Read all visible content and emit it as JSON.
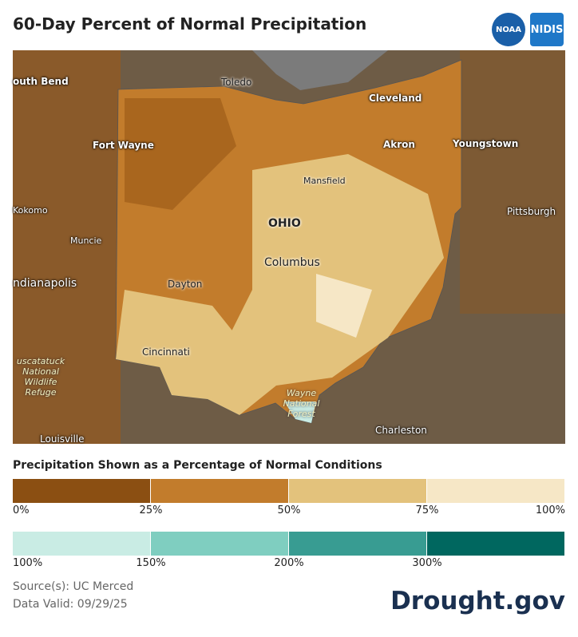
{
  "header": {
    "title": "60-Day Percent of Normal Precipitation",
    "logos": [
      "NOAA",
      "NIDIS"
    ]
  },
  "map": {
    "labels": [
      "outh Bend",
      "Toledo",
      "Cleveland",
      "Fort Wayne",
      "Akron",
      "Youngstown",
      "Mansfield",
      "Kokomo",
      "OHIO",
      "Pittsburgh",
      "Muncie",
      "Columbus",
      "ndianapolis",
      "Dayton",
      "Cincinnati",
      "uscatatuck National Wildlife Refuge",
      "Wayne National Forest",
      "Charleston",
      "Louisville"
    ]
  },
  "legend": {
    "title": "Precipitation Shown as a Percentage of Normal Conditions",
    "rows": [
      {
        "colors": [
          "#8b4f12",
          "#c27c2c",
          "#e3c27c",
          "#f6e7c6"
        ],
        "labels": [
          "0%",
          "25%",
          "50%",
          "75%",
          "100%"
        ]
      },
      {
        "colors": [
          "#c9ece4",
          "#7fcec0",
          "#389c92",
          "#00675f"
        ],
        "labels": [
          "100%",
          "150%",
          "200%",
          "300%"
        ]
      }
    ]
  },
  "footer": {
    "source": "Source(s): UC Merced",
    "valid": "Data Valid: 09/29/25",
    "brand": "Drought.gov"
  }
}
